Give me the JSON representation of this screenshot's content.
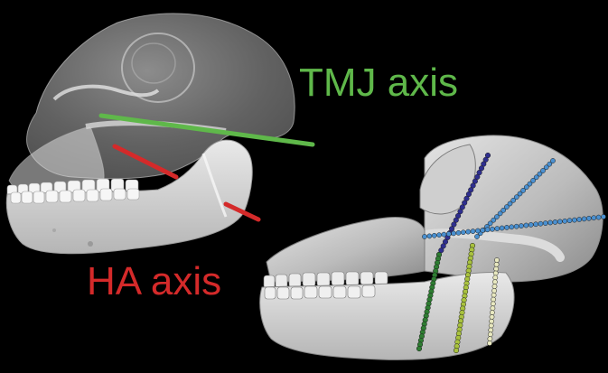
{
  "labels": {
    "tmj": "TMJ axis",
    "ha": "HA axis"
  },
  "colors": {
    "background": "#000000",
    "tmj_axis": "#5fb84a",
    "ha_axis": "#d42a2a",
    "skull_translucent": "#e8e8e8",
    "skull_solid": "#d6d6d6",
    "marker_dark_blue": "#2f2f8f",
    "marker_light_blue": "#4a90d0",
    "marker_dark_green": "#2e7d32",
    "marker_yellow_green": "#a9c23f",
    "marker_pale": "#e8e8c0"
  },
  "figures": {
    "left": "translucent-primate-skull-with-axes",
    "right": "solid-primate-skull-with-marker-chains"
  }
}
